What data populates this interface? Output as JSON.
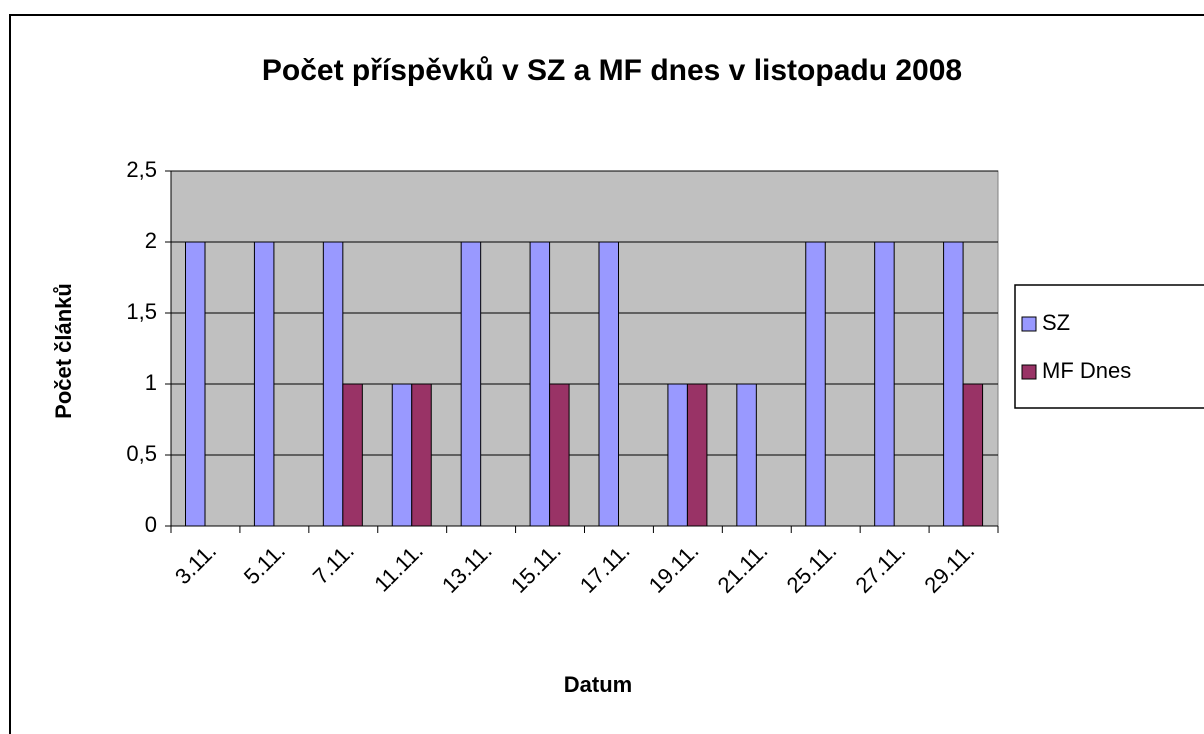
{
  "chart_data": {
    "type": "bar",
    "title": "Počet příspěvků v SZ a MF dnes v listopadu 2008",
    "xlabel": "Datum",
    "ylabel": "Počet článků",
    "categories": [
      "3.11.",
      "5.11.",
      "7.11.",
      "11.11.",
      "13.11.",
      "15.11.",
      "17.11.",
      "19.11.",
      "21.11.",
      "25.11.",
      "27.11.",
      "29.11."
    ],
    "series": [
      {
        "name": "SZ",
        "color": "#9999ff",
        "values": [
          2,
          2,
          2,
          1,
          2,
          2,
          2,
          1,
          1,
          2,
          2,
          2
        ]
      },
      {
        "name": "MF Dnes",
        "color": "#993366",
        "values": [
          null,
          null,
          1,
          1,
          null,
          1,
          null,
          1,
          null,
          null,
          null,
          1
        ]
      }
    ],
    "ylim": [
      0,
      2.5
    ],
    "yticks": [
      0,
      {
        "value": 0.5,
        "label": "0,5"
      },
      1,
      {
        "value": 1.5,
        "label": "1,5"
      },
      2,
      {
        "value": 2.5,
        "label": "2,5"
      }
    ],
    "grid": true,
    "legend": "right"
  }
}
